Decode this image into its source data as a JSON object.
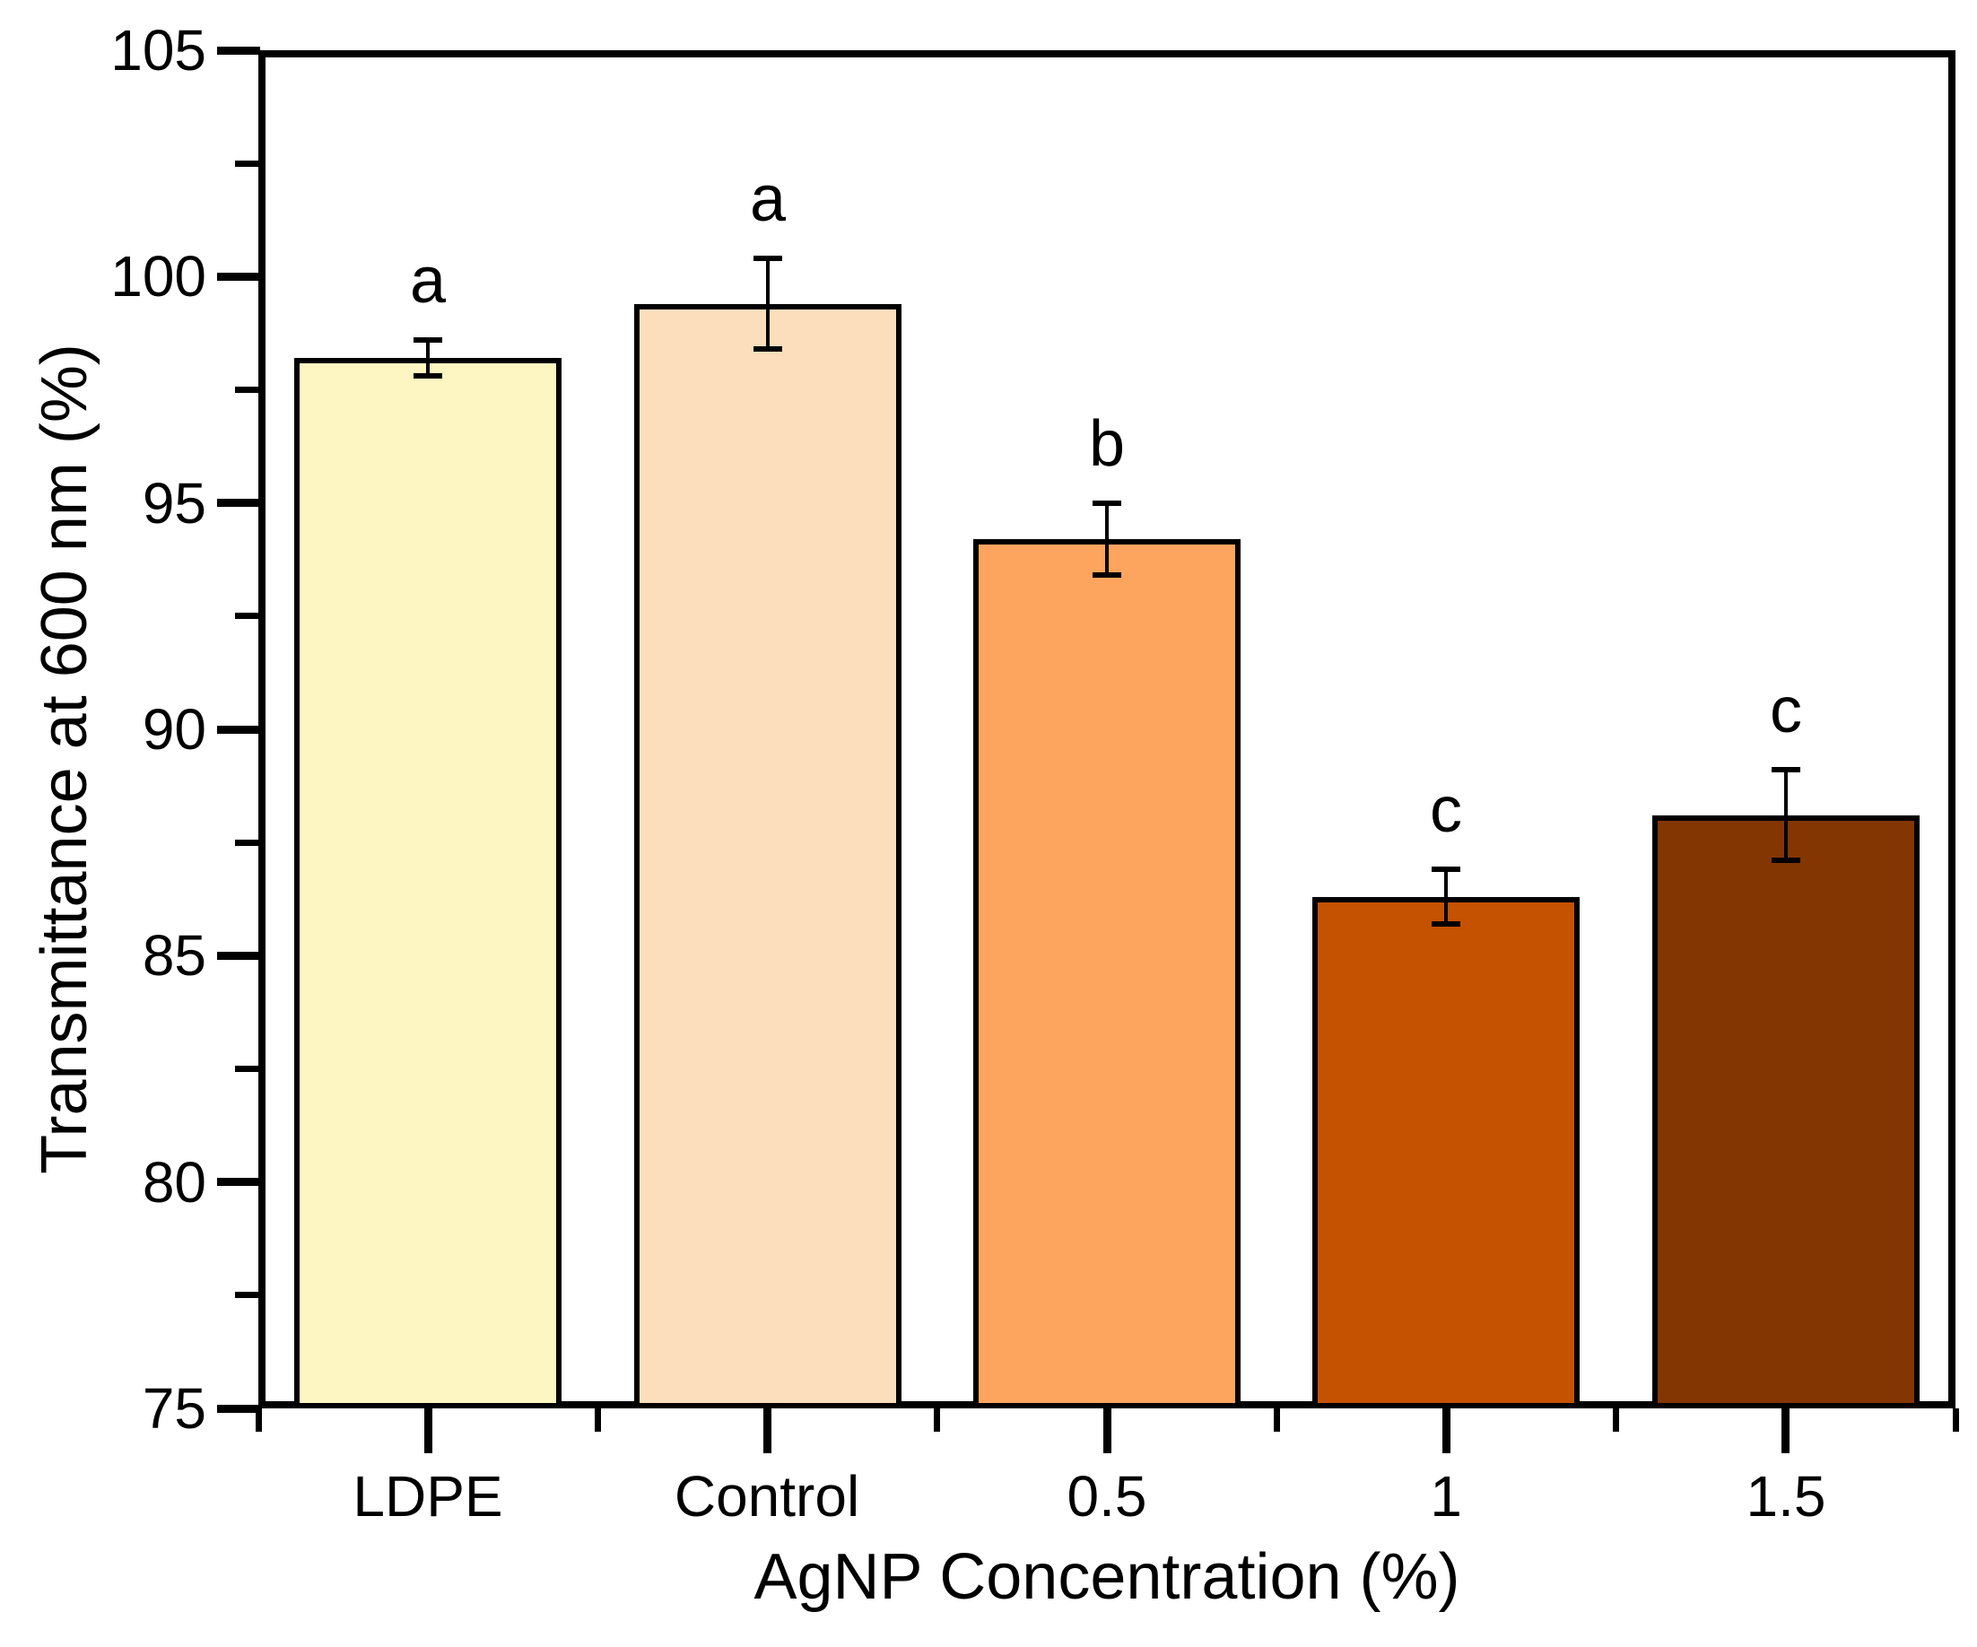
{
  "figure": {
    "background_color": "#FFFFFF",
    "text_color": "#000000",
    "axis_color": "#000000"
  },
  "chart_data": {
    "type": "bar",
    "title": "",
    "xlabel": "AgNP Concentration (%)",
    "ylabel": "Transmittance at 600 nm (%)",
    "categories": [
      "LDPE",
      "Control",
      "0.5",
      "1",
      "1.5"
    ],
    "values": [
      98.2,
      99.4,
      94.2,
      86.3,
      88.1
    ],
    "errors": [
      0.4,
      1.0,
      0.8,
      0.6,
      1.0
    ],
    "significance_letters": [
      "a",
      "a",
      "b",
      "c",
      "c"
    ],
    "bar_colors": [
      "#FDF5C2",
      "#FCDEBC",
      "#FDA55F",
      "#C55200",
      "#833601"
    ],
    "bar_edge_color": "#000000",
    "error_bar_color": "#000000",
    "ylim": [
      75,
      105
    ],
    "y_major_ticks": [
      75,
      80,
      85,
      90,
      95,
      100,
      105
    ],
    "y_minor_ticks": [
      77.5,
      82.5,
      87.5,
      92.5,
      97.5,
      102.5
    ],
    "grid": false,
    "legend": null
  }
}
